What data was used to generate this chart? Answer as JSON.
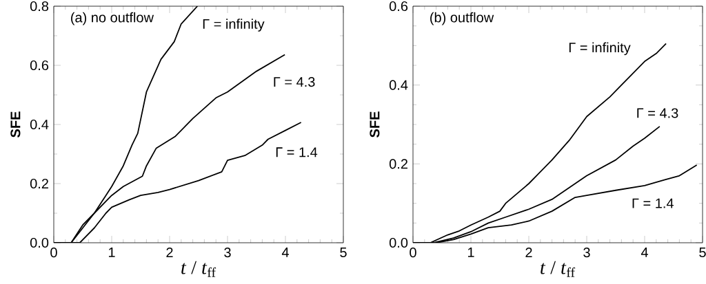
{
  "chart_data": [
    {
      "type": "line",
      "title": "(a) no outflow",
      "xlabel": "*t* / *t*$_{ff}$",
      "ylabel": "**SFE**",
      "xlim": [
        0,
        5
      ],
      "ylim": [
        0,
        0.8
      ],
      "xticks": [
        0,
        1,
        2,
        3,
        4,
        5
      ],
      "yticks": [
        "0.0",
        0.2,
        0.4,
        0.6,
        0.8
      ],
      "line_style": "solid",
      "series": [
        {
          "name": "Γ = infinity",
          "color": "#000000",
          "x": [
            0,
            0.3,
            0.5,
            0.7,
            0.9,
            1.0,
            1.2,
            1.35,
            1.45,
            1.6,
            1.85,
            2.08,
            2.2,
            2.48
          ],
          "values": [
            0,
            0,
            0.05,
            0.1,
            0.16,
            0.19,
            0.26,
            0.33,
            0.37,
            0.51,
            0.62,
            0.68,
            0.74,
            0.8
          ]
        },
        {
          "name": "Γ = 4.3",
          "color": "#000000",
          "x": [
            0,
            0.3,
            0.5,
            0.7,
            1.0,
            1.2,
            1.53,
            1.6,
            1.77,
            2.1,
            2.2,
            2.4,
            2.8,
            3.0,
            3.5,
            3.99
          ],
          "values": [
            0,
            0,
            0.06,
            0.1,
            0.16,
            0.19,
            0.225,
            0.26,
            0.32,
            0.36,
            0.38,
            0.42,
            0.49,
            0.51,
            0.58,
            0.636
          ]
        },
        {
          "name": "Γ = 1.4",
          "color": "#000000",
          "x": [
            0,
            0.45,
            0.7,
            0.9,
            1.0,
            1.3,
            1.5,
            1.8,
            2.0,
            2.5,
            2.9,
            3.0,
            3.3,
            3.6,
            3.7,
            4.0,
            4.27
          ],
          "values": [
            0,
            0,
            0.05,
            0.1,
            0.12,
            0.145,
            0.16,
            0.17,
            0.18,
            0.21,
            0.24,
            0.279,
            0.295,
            0.33,
            0.35,
            0.38,
            0.407
          ]
        }
      ]
    },
    {
      "type": "line",
      "title": "(b) outflow",
      "xlabel": "*t* / *t*$_{ff}$",
      "ylabel": "**SFE**",
      "xlim": [
        0,
        5
      ],
      "ylim": [
        0,
        0.6
      ],
      "xticks": [
        0,
        1,
        2,
        3,
        4,
        5
      ],
      "yticks": [
        "0.0",
        0.2,
        0.4,
        0.6
      ],
      "line_style": "solid",
      "series": [
        {
          "name": "Γ = infinity",
          "color": "#000000",
          "x": [
            0,
            0.3,
            0.6,
            0.8,
            1.0,
            1.3,
            1.5,
            1.6,
            2.0,
            2.4,
            2.7,
            2.9,
            3.0,
            3.4,
            3.6,
            4.0,
            4.2,
            4.37
          ],
          "values": [
            0,
            0,
            0.02,
            0.03,
            0.045,
            0.065,
            0.08,
            0.1,
            0.15,
            0.21,
            0.26,
            0.3,
            0.32,
            0.37,
            0.4,
            0.46,
            0.48,
            0.505
          ]
        },
        {
          "name": "Γ = 4.3",
          "color": "#000000",
          "x": [
            0,
            0.35,
            0.7,
            1.0,
            1.3,
            1.6,
            2.0,
            2.4,
            2.8,
            3.0,
            3.5,
            3.8,
            4.0,
            4.26
          ],
          "values": [
            0,
            0,
            0.012,
            0.028,
            0.05,
            0.065,
            0.085,
            0.11,
            0.15,
            0.17,
            0.21,
            0.245,
            0.265,
            0.295
          ]
        },
        {
          "name": "Γ = 1.4",
          "color": "#000000",
          "x": [
            0,
            0.4,
            0.7,
            1.0,
            1.3,
            1.7,
            2.0,
            2.4,
            2.8,
            3.0,
            3.5,
            4.0,
            4.35,
            4.6,
            4.9
          ],
          "values": [
            0,
            0,
            0.008,
            0.022,
            0.038,
            0.045,
            0.055,
            0.08,
            0.115,
            0.12,
            0.133,
            0.145,
            0.16,
            0.17,
            0.197
          ]
        }
      ]
    }
  ]
}
